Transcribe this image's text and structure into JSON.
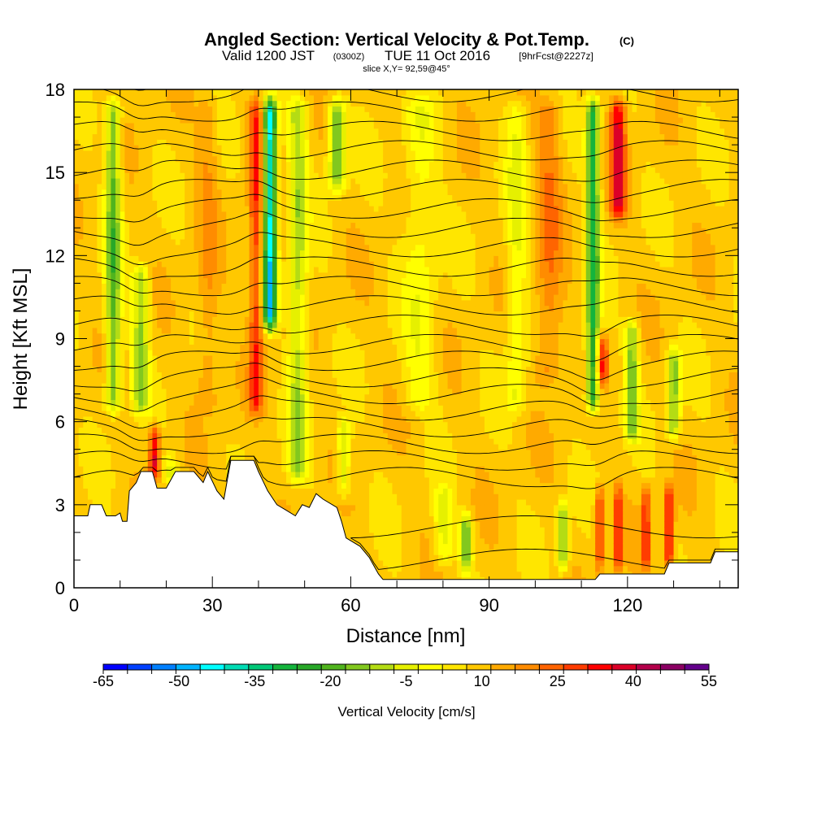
{
  "header": {
    "title_main": "Angled Section: Vertical Velocity & Pot.Temp.",
    "title_unit": "(C)",
    "sub_valid": "Valid 1200 JST",
    "sub_utc": "(0300Z)",
    "sub_date": "TUE 11 Oct 2016",
    "sub_fcst": "[9hrFcst@2227z]",
    "slice": "slice X,Y= 92,59@45°"
  },
  "chart_data": {
    "type": "heatmap",
    "title": "Angled Section: Vertical Velocity & Pot.Temp. (C)",
    "xlabel": "Distance [nm]",
    "ylabel": "Height [Kft MSL]",
    "xlim": [
      0,
      144
    ],
    "ylim": [
      0,
      18
    ],
    "x_ticks": [
      0,
      30,
      60,
      90,
      120
    ],
    "x_tick_labels": [
      "0",
      "30",
      "60",
      "90",
      "120"
    ],
    "y_ticks": [
      0,
      3,
      6,
      9,
      12,
      15,
      18
    ],
    "y_tick_labels": [
      "0",
      "3",
      "6",
      "9",
      "12",
      "15",
      "18"
    ],
    "colorbar": {
      "label": "Vertical Velocity [cm/s]",
      "min": -65,
      "max": 55,
      "step": 5,
      "tick_values": [
        -65,
        -50,
        -35,
        -20,
        -5,
        10,
        25,
        40,
        55
      ],
      "tick_labels": [
        "-65",
        "-50",
        "-35",
        "-20",
        "-5",
        "10",
        "25",
        "40",
        "55"
      ],
      "colors": [
        "#0000ff",
        "#0040ff",
        "#0080ff",
        "#00b4ff",
        "#00ffff",
        "#00dcb4",
        "#00c878",
        "#14b43c",
        "#28a828",
        "#50b41e",
        "#82c81e",
        "#b4dc14",
        "#e6f000",
        "#ffff00",
        "#ffe600",
        "#ffc800",
        "#ffaa00",
        "#ff8c00",
        "#ff6400",
        "#ff3c00",
        "#ff0000",
        "#dc0028",
        "#b4004b",
        "#8c0064",
        "#64008c"
      ]
    },
    "field_base_cm_s": 12,
    "features": [
      {
        "x": 8.5,
        "w": 1.6,
        "z0": 6,
        "z1": 18,
        "amp": -28
      },
      {
        "x": 14.5,
        "w": 1.8,
        "z0": 6,
        "z1": 12,
        "amp": -22
      },
      {
        "x": 17.5,
        "w": 1.2,
        "z0": 3.6,
        "z1": 6.2,
        "amp": 30
      },
      {
        "x": 21,
        "w": 1.5,
        "z0": 3.5,
        "z1": 5,
        "amp": -18
      },
      {
        "x": 29,
        "w": 2.2,
        "z0": 6,
        "z1": 18,
        "amp": 8
      },
      {
        "x": 39.5,
        "w": 1.5,
        "z0": 6,
        "z1": 18,
        "amp": 22
      },
      {
        "x": 42.5,
        "w": 1.4,
        "z0": 9,
        "z1": 18,
        "amp": -55
      },
      {
        "x": 48.5,
        "w": 2.0,
        "z0": 3.5,
        "z1": 18,
        "amp": -20
      },
      {
        "x": 57,
        "w": 1.8,
        "z0": 14,
        "z1": 18,
        "amp": -28
      },
      {
        "x": 58.5,
        "w": 1.4,
        "z0": 3,
        "z1": 6.5,
        "amp": -18
      },
      {
        "x": 75,
        "w": 3.5,
        "z0": 6,
        "z1": 18,
        "amp": -10
      },
      {
        "x": 80,
        "w": 2.0,
        "z0": 0.5,
        "z1": 4,
        "amp": -14
      },
      {
        "x": 85,
        "w": 1.2,
        "z0": 0.3,
        "z1": 3,
        "amp": -30
      },
      {
        "x": 96,
        "w": 2.2,
        "z0": 6,
        "z1": 18,
        "amp": -12
      },
      {
        "x": 103,
        "w": 2.8,
        "z0": 7,
        "z1": 18,
        "amp": 12
      },
      {
        "x": 106,
        "w": 1.2,
        "z0": 0.3,
        "z1": 3.5,
        "amp": -25
      },
      {
        "x": 112.5,
        "w": 1.4,
        "z0": 6,
        "z1": 18,
        "amp": -38
      },
      {
        "x": 114.5,
        "w": 1.2,
        "z0": 7,
        "z1": 9.5,
        "amp": 25
      },
      {
        "x": 118,
        "w": 1.6,
        "z0": 13,
        "z1": 18,
        "amp": 30
      },
      {
        "x": 121,
        "w": 1.4,
        "z0": 5,
        "z1": 10,
        "amp": -25
      },
      {
        "x": 130,
        "w": 1.4,
        "z0": 5,
        "z1": 9,
        "amp": -25
      },
      {
        "x": 114,
        "w": 1.0,
        "z0": 0.3,
        "z1": 4,
        "amp": 22
      },
      {
        "x": 118,
        "w": 0.8,
        "z0": 0.3,
        "z1": 4,
        "amp": 25
      },
      {
        "x": 124,
        "w": 0.8,
        "z0": 0.3,
        "z1": 4,
        "amp": 25
      },
      {
        "x": 129,
        "w": 1.0,
        "z0": 0.3,
        "z1": 4,
        "amp": 28
      }
    ],
    "terrain_kft": [
      [
        0,
        2.6
      ],
      [
        3,
        2.6
      ],
      [
        3.5,
        3.0
      ],
      [
        6,
        3.0
      ],
      [
        7,
        2.6
      ],
      [
        9,
        2.6
      ],
      [
        10,
        2.7
      ],
      [
        10.5,
        2.4
      ],
      [
        11.5,
        2.4
      ],
      [
        12,
        3.5
      ],
      [
        13.5,
        3.8
      ],
      [
        14.5,
        4.2
      ],
      [
        17,
        4.2
      ],
      [
        18,
        3.6
      ],
      [
        20,
        3.6
      ],
      [
        22,
        4.2
      ],
      [
        26,
        4.2
      ],
      [
        28,
        3.8
      ],
      [
        29,
        4.2
      ],
      [
        31,
        3.5
      ],
      [
        32.5,
        3.2
      ],
      [
        34,
        4.6
      ],
      [
        39,
        4.6
      ],
      [
        40,
        4.2
      ],
      [
        42,
        3.5
      ],
      [
        44,
        3.0
      ],
      [
        46,
        2.8
      ],
      [
        48,
        2.6
      ],
      [
        49.5,
        3.0
      ],
      [
        51,
        2.9
      ],
      [
        52.5,
        3.4
      ],
      [
        54,
        3.2
      ],
      [
        57,
        2.9
      ],
      [
        58,
        2.4
      ],
      [
        59,
        1.8
      ],
      [
        62,
        1.5
      ],
      [
        64,
        1.1
      ],
      [
        65,
        0.8
      ],
      [
        66,
        0.5
      ],
      [
        67,
        0.3
      ],
      [
        90,
        0.3
      ],
      [
        99,
        0.3
      ],
      [
        113,
        0.3
      ],
      [
        114,
        0.5
      ],
      [
        128,
        0.5
      ],
      [
        129,
        0.9
      ],
      [
        138,
        0.9
      ],
      [
        139,
        1.3
      ],
      [
        144,
        1.3
      ]
    ],
    "theta_contours_c": [
      24,
      26,
      28,
      30,
      32,
      34,
      36,
      38,
      40,
      42,
      44,
      46,
      48,
      50,
      52,
      54,
      56,
      58,
      60,
      62,
      64,
      66,
      68,
      70
    ]
  }
}
